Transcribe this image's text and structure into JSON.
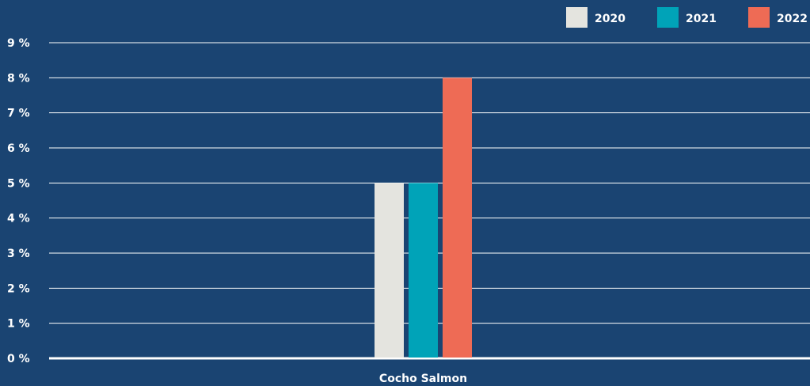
{
  "chart_data": {
    "type": "bar",
    "categories": [
      "Cocho Salmon"
    ],
    "series": [
      {
        "name": "2020",
        "values": [
          5
        ],
        "color": "#e4e4df"
      },
      {
        "name": "2021",
        "values": [
          5
        ],
        "color": "#00a3b8"
      },
      {
        "name": "2022",
        "values": [
          8
        ],
        "color": "#ee6b55"
      }
    ],
    "ylim": [
      0,
      9
    ],
    "y_ticks": [
      {
        "value": 0,
        "label": "0 %"
      },
      {
        "value": 1,
        "label": "1 %"
      },
      {
        "value": 2,
        "label": "2 %"
      },
      {
        "value": 3,
        "label": "3 %"
      },
      {
        "value": 4,
        "label": "4 %"
      },
      {
        "value": 5,
        "label": "5 %"
      },
      {
        "value": 6,
        "label": "6 %"
      },
      {
        "value": 7,
        "label": "7 %"
      },
      {
        "value": 8,
        "label": "8 %"
      },
      {
        "value": 9,
        "label": "9 %"
      }
    ],
    "grid": true,
    "legend_position": "top-right",
    "background_color": "#1a4472",
    "grid_color": "#ffffff"
  }
}
